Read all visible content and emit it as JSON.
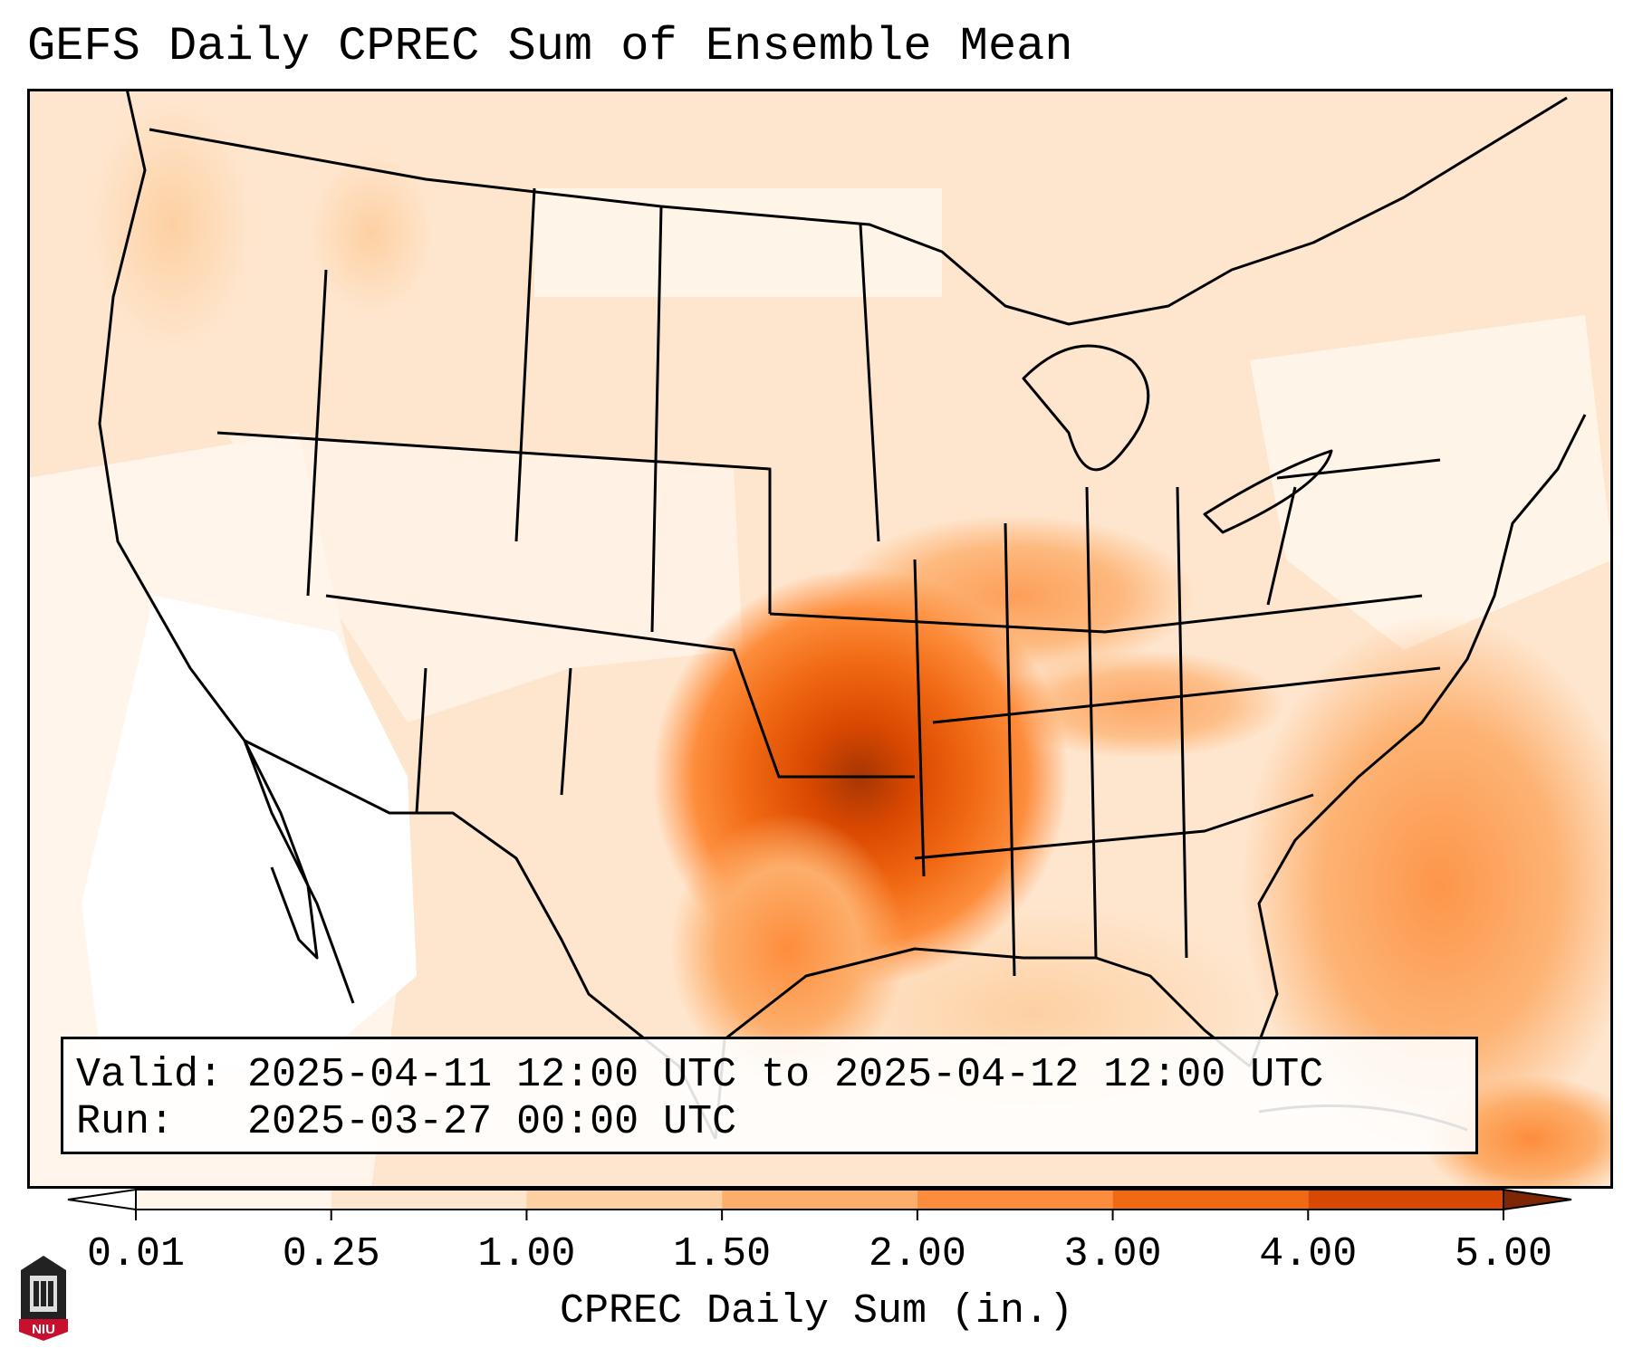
{
  "title": "GEFS Daily CPREC Sum of Ensemble Mean",
  "info": {
    "valid_label": "Valid:",
    "valid_value": "2025-04-11 12:00 UTC to 2025-04-12 12:00 UTC",
    "run_label": "Run:",
    "run_value": "2025-03-27 00:00 UTC"
  },
  "colorbar": {
    "label": "CPREC Daily Sum (in.)",
    "ticks": [
      "0.01",
      "0.25",
      "1.00",
      "1.50",
      "2.00",
      "3.00",
      "4.00",
      "5.00"
    ],
    "colors": [
      "#fff5eb",
      "#fee6ce",
      "#fdd0a2",
      "#fdae6b",
      "#fd8d3c",
      "#f16913",
      "#d94801",
      "#a63603"
    ],
    "under_color": "#ffffff",
    "over_color": "#7f2704"
  },
  "logo": {
    "text": "NIU",
    "color": "#c8102e"
  },
  "map": {
    "region": "Continental United States",
    "heaviest_precip": "Oklahoma / Arkansas"
  }
}
